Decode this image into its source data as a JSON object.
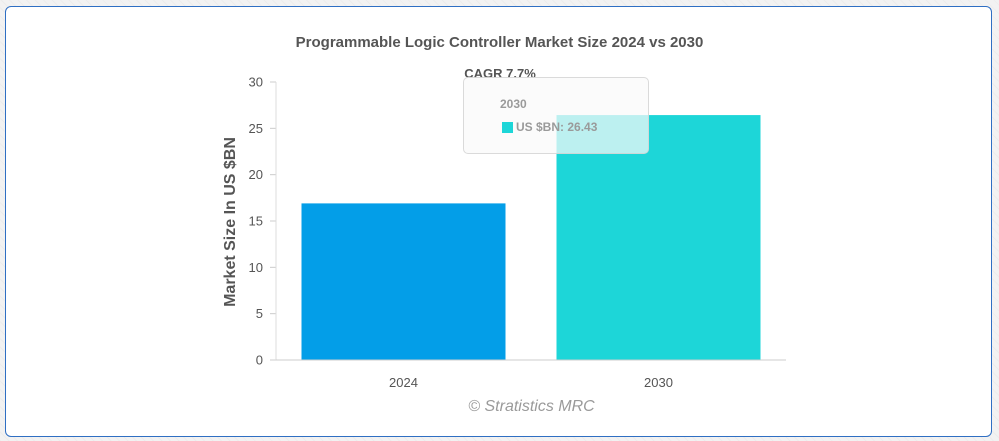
{
  "chart_data": {
    "type": "bar",
    "title": "Programmable Logic Controller Market Size 2024 vs 2030",
    "categories": [
      "2024",
      "2030"
    ],
    "values": [
      16.9,
      26.43
    ],
    "colors": [
      "#039ee8",
      "#1dd6d8"
    ],
    "ylabel": "Market Size In US $BN",
    "ylim": [
      0,
      30
    ],
    "yticks": [
      "0",
      "5",
      "10",
      "15",
      "20",
      "25",
      "30"
    ],
    "annotation": "CAGR 7.7%",
    "tooltip": {
      "title": "2030",
      "label": "US $BN: 26.43",
      "color": "#1dd6d8"
    },
    "grid": false
  },
  "watermark": "© Stratistics MRC"
}
